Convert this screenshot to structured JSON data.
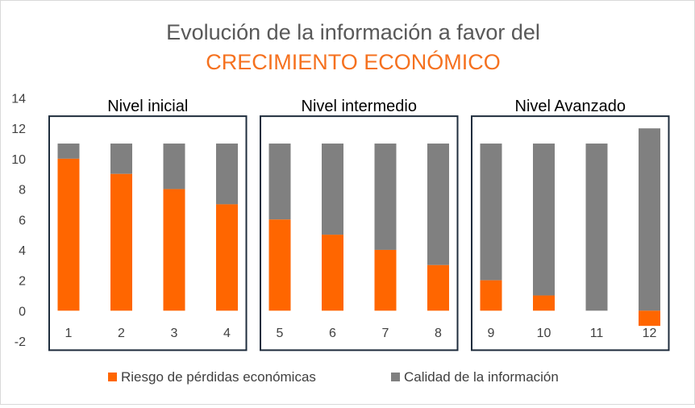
{
  "chart_data": {
    "type": "bar",
    "stacked": true,
    "title": "Evolución de la información a favor del",
    "subtitle": "CRECIMIENTO ECONÓMICO",
    "categories": [
      "1",
      "2",
      "3",
      "4",
      "5",
      "6",
      "7",
      "8",
      "9",
      "10",
      "11",
      "12"
    ],
    "series": [
      {
        "name": "Riesgo de pérdidas económicas",
        "color": "#ff6600",
        "values": [
          10,
          9,
          8,
          7,
          6,
          5,
          4,
          3,
          2,
          1,
          0,
          -1
        ]
      },
      {
        "name": "Calidad de la información",
        "color": "#808080",
        "values": [
          1,
          2,
          3,
          4,
          5,
          6,
          7,
          8,
          9,
          10,
          11,
          12
        ]
      }
    ],
    "ylim": [
      -2,
      14
    ],
    "yticks": [
      "14",
      "12",
      "10",
      "8",
      "6",
      "4",
      "2",
      "0",
      "-2"
    ],
    "groups": [
      {
        "label": "Nivel inicial",
        "from": 0,
        "to": 3
      },
      {
        "label": "Nivel intermedio",
        "from": 4,
        "to": 7
      },
      {
        "label": "Nivel Avanzado",
        "from": 8,
        "to": 11
      }
    ],
    "legend_position": "bottom",
    "grid": false
  }
}
